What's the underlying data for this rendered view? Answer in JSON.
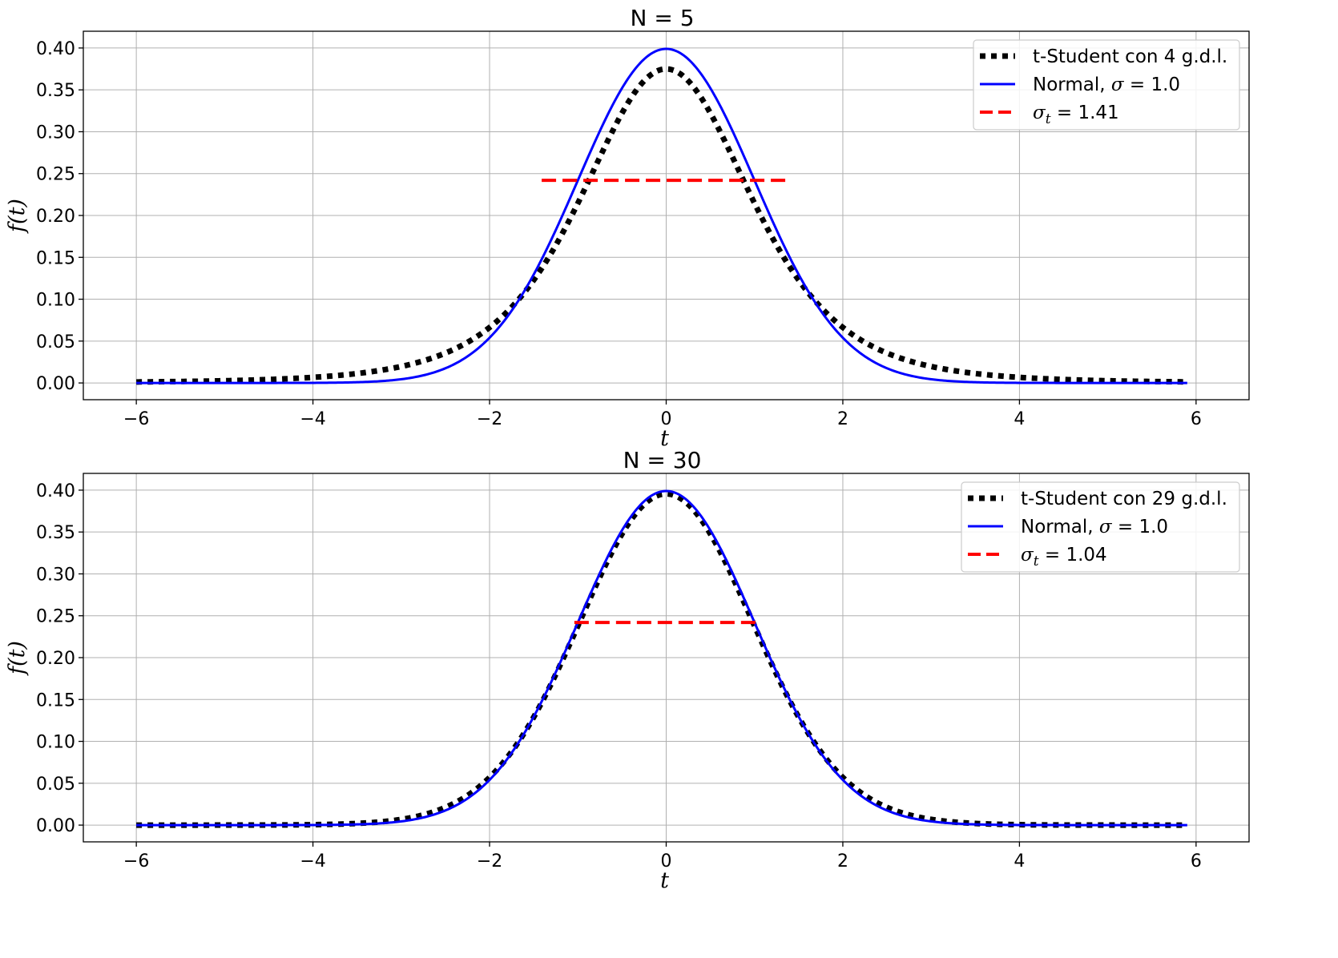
{
  "chart_data": [
    {
      "type": "line",
      "title": "N = 5",
      "xlabel": "t",
      "ylabel": "f(t)",
      "xlim": [
        -6.6,
        6.6
      ],
      "ylim": [
        -0.02,
        0.42
      ],
      "x_ticks": [
        -6,
        -4,
        -2,
        0,
        2,
        4,
        6
      ],
      "x_tick_labels": [
        "−6",
        "−4",
        "−2",
        "0",
        "2",
        "4",
        "6"
      ],
      "y_ticks": [
        0.0,
        0.05,
        0.1,
        0.15,
        0.2,
        0.25,
        0.3,
        0.35,
        0.4
      ],
      "y_tick_labels": [
        "0.00",
        "0.05",
        "0.10",
        "0.15",
        "0.20",
        "0.25",
        "0.30",
        "0.35",
        "0.40"
      ],
      "grid": true,
      "legend_position": "top-right",
      "x_range": [
        -6,
        5.9
      ],
      "series": [
        {
          "name": "t-Student con 4 g.d.l.",
          "kind": "t-student",
          "dof": 4,
          "color": "#000000",
          "style": "dotted"
        },
        {
          "name": "Normal, σ = 1.0",
          "kind": "normal",
          "sigma": 1.0,
          "color": "#0000ff",
          "style": "solid"
        },
        {
          "name": "σt = 1.41",
          "kind": "hline",
          "y": 0.242,
          "x": [
            -1.41,
            1.41
          ],
          "color": "#ff0000",
          "style": "dashed"
        }
      ],
      "legend": [
        {
          "pre": "t-Student con 4 g.d.l.",
          "math": "",
          "post": ""
        },
        {
          "pre": "Normal, ",
          "math": "σ",
          "post": " = 1.0"
        },
        {
          "pre": "",
          "math": "σ",
          "sub": "t",
          "post": " = 1.41"
        }
      ]
    },
    {
      "type": "line",
      "title": "N = 30",
      "xlabel": "t",
      "ylabel": "f(t)",
      "xlim": [
        -6.6,
        6.6
      ],
      "ylim": [
        -0.02,
        0.42
      ],
      "x_ticks": [
        -6,
        -4,
        -2,
        0,
        2,
        4,
        6
      ],
      "x_tick_labels": [
        "−6",
        "−4",
        "−2",
        "0",
        "2",
        "4",
        "6"
      ],
      "y_ticks": [
        0.0,
        0.05,
        0.1,
        0.15,
        0.2,
        0.25,
        0.3,
        0.35,
        0.4
      ],
      "y_tick_labels": [
        "0.00",
        "0.05",
        "0.10",
        "0.15",
        "0.20",
        "0.25",
        "0.30",
        "0.35",
        "0.40"
      ],
      "grid": true,
      "legend_position": "top-right",
      "x_range": [
        -6,
        5.9
      ],
      "series": [
        {
          "name": "t-Student con 29 g.d.l.",
          "kind": "t-student",
          "dof": 29,
          "color": "#000000",
          "style": "dotted"
        },
        {
          "name": "Normal, σ = 1.0",
          "kind": "normal",
          "sigma": 1.0,
          "color": "#0000ff",
          "style": "solid"
        },
        {
          "name": "σt = 1.04",
          "kind": "hline",
          "y": 0.242,
          "x": [
            -1.04,
            1.04
          ],
          "color": "#ff0000",
          "style": "dashed"
        }
      ],
      "legend": [
        {
          "pre": "t-Student con 29 g.d.l.",
          "math": "",
          "post": ""
        },
        {
          "pre": "Normal, ",
          "math": "σ",
          "post": " = 1.0"
        },
        {
          "pre": "",
          "math": "σ",
          "sub": "t",
          "post": " = 1.04"
        }
      ]
    }
  ]
}
